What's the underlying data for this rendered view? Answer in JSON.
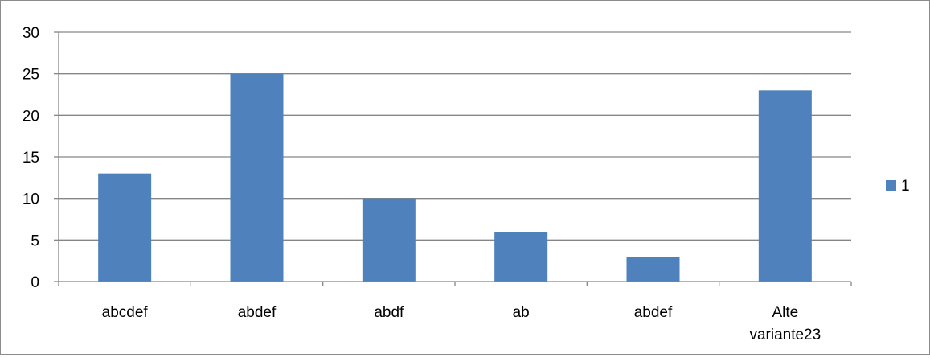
{
  "chart_data": {
    "type": "bar",
    "title": "",
    "xlabel": "",
    "ylabel": "",
    "categories": [
      "abcdef",
      "abdef",
      "abdf",
      "ab",
      "abdef",
      "Alte variante23"
    ],
    "category_lines": [
      [
        "abcdef"
      ],
      [
        "abdef"
      ],
      [
        "abdf"
      ],
      [
        "ab"
      ],
      [
        "abdef"
      ],
      [
        "Alte",
        "variante23"
      ]
    ],
    "series": [
      {
        "name": "1",
        "values": [
          13,
          25,
          10,
          6,
          3,
          23
        ],
        "color": "#4f81bd"
      }
    ],
    "ylim": [
      0,
      30
    ],
    "yticks": [
      0,
      5,
      10,
      15,
      20,
      25,
      30
    ],
    "grid": true,
    "legend_position": "right",
    "colors": {
      "gridline": "#868686",
      "axis": "#868686",
      "frame": "#8c8c8c"
    }
  }
}
